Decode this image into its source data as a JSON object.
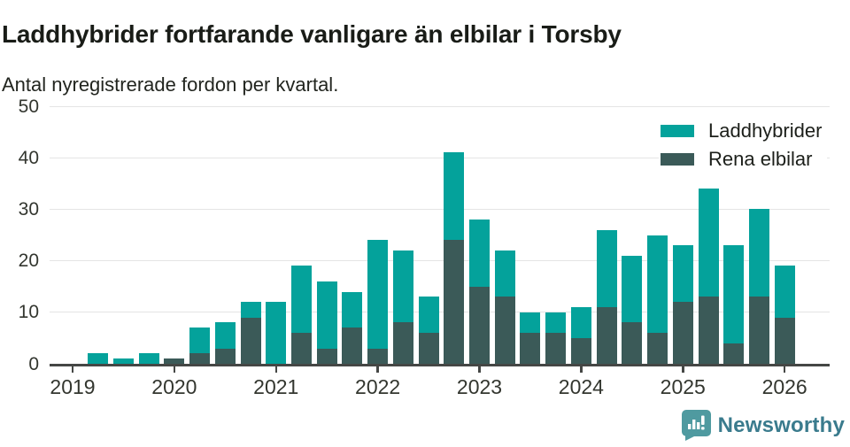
{
  "header": {
    "title": "Laddhybrider fortfarande vanligare än elbilar i Torsby",
    "subtitle": "Antal nyregistrerade fordon per kvartal."
  },
  "footer": {
    "brand": "Newsworthy",
    "logo_icon": "newsworthy-speech-bubble-bar-chart-icon",
    "logo_icon_color": "#4f9aa0",
    "brand_text_color": "#3a7b8d"
  },
  "colors": {
    "laddhybrider": "#04a29b",
    "rena_elbilar": "#3b5a58",
    "gridline": "#e4e4e4",
    "axis": "#454745",
    "title_text": "#191c17",
    "axis_text": "#33362f",
    "background": "#ffffff"
  },
  "chart_data": {
    "type": "bar",
    "stacked": true,
    "title": "Laddhybrider fortfarande vanligare än elbilar i Torsby",
    "subtitle": "Antal nyregistrerade fordon per kvartal.",
    "categories": [
      "2019 Q1",
      "2019 Q2",
      "2019 Q3",
      "2019 Q4",
      "2020 Q1",
      "2020 Q2",
      "2020 Q3",
      "2020 Q4",
      "2021 Q1",
      "2021 Q2",
      "2021 Q3",
      "2021 Q4",
      "2022 Q1",
      "2022 Q2",
      "2022 Q3",
      "2022 Q4",
      "2023 Q1",
      "2023 Q2",
      "2023 Q3",
      "2023 Q4",
      "2024 Q1",
      "2024 Q2",
      "2024 Q3",
      "2024 Q4",
      "2025 Q1",
      "2025 Q2",
      "2025 Q3",
      "2025 Q4",
      "2026 Q1"
    ],
    "series": [
      {
        "name": "Laddhybrider",
        "color": "#04a29b",
        "stack_position": "top",
        "values": [
          0,
          2,
          1,
          2,
          0,
          5,
          5,
          3,
          12,
          13,
          13,
          7,
          21,
          14,
          7,
          17,
          13,
          9,
          4,
          4,
          6,
          15,
          13,
          19,
          11,
          21,
          19,
          17,
          10
        ]
      },
      {
        "name": "Rena elbilar",
        "color": "#3b5a58",
        "stack_position": "bottom",
        "values": [
          0,
          0,
          0,
          0,
          1,
          2,
          3,
          9,
          0,
          6,
          3,
          7,
          3,
          8,
          6,
          24,
          15,
          13,
          6,
          6,
          5,
          11,
          8,
          6,
          12,
          13,
          4,
          13,
          9
        ]
      }
    ],
    "totals": [
      0,
      2,
      1,
      2,
      1,
      7,
      8,
      12,
      12,
      19,
      16,
      14,
      24,
      22,
      13,
      41,
      28,
      22,
      10,
      10,
      11,
      26,
      21,
      25,
      23,
      34,
      23,
      30,
      19
    ],
    "ylim": [
      0,
      50
    ],
    "yticks": [
      0,
      10,
      20,
      30,
      40,
      50
    ],
    "x_tick_labels": [
      "2019",
      "2020",
      "2021",
      "2022",
      "2023",
      "2024",
      "2025",
      "2026"
    ],
    "xlabel": "",
    "ylabel": "",
    "grid": "horizontal",
    "legend_position": "top-right"
  }
}
